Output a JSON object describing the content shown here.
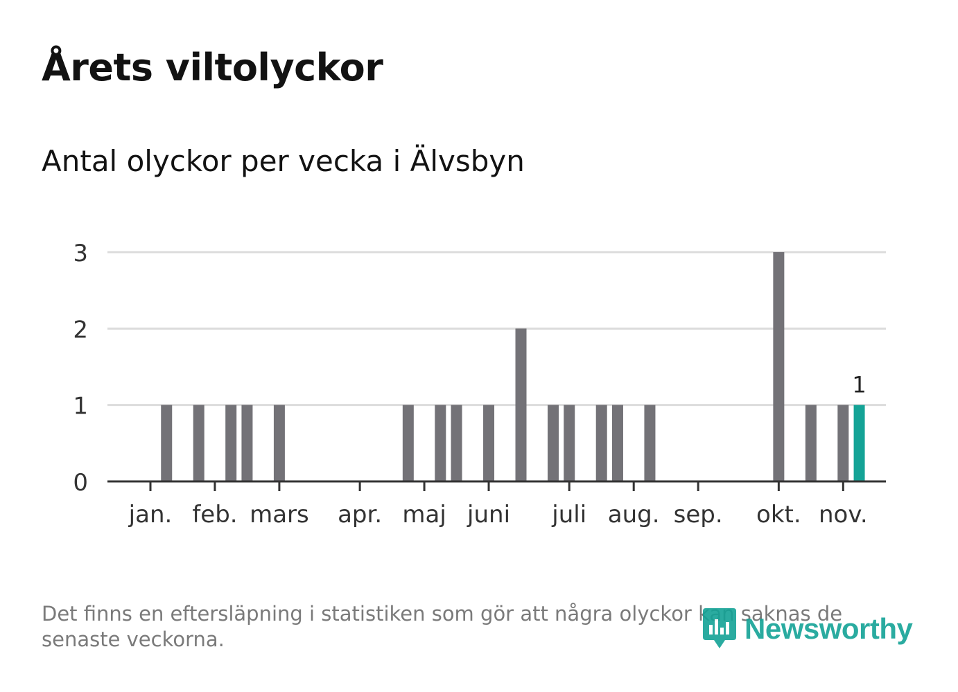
{
  "header": {
    "title": "Årets viltolyckor",
    "subtitle": "Antal olyckor per vecka i Älvsbyn"
  },
  "footer": {
    "note": "Det finns en eftersläpning i statistiken som gör att några olyckor kan saknas de senaste veckorna.",
    "brand": "Newsworthy"
  },
  "colors": {
    "bar": "#737277",
    "highlight": "#14a396",
    "brand": "#14a396",
    "grid": "#dcdcdc",
    "axis": "#333333",
    "text": "#333333"
  },
  "chart_data": {
    "type": "bar",
    "title": "Årets viltolyckor",
    "subtitle": "Antal olyckor per vecka i Älvsbyn",
    "xlabel": "",
    "ylabel": "",
    "ylim": [
      0,
      3
    ],
    "yticks": [
      0,
      1,
      2,
      3
    ],
    "weeks": [
      1,
      2,
      3,
      4,
      5,
      6,
      7,
      8,
      9,
      10,
      11,
      12,
      13,
      14,
      15,
      16,
      17,
      18,
      19,
      20,
      21,
      22,
      23,
      24,
      25,
      26,
      27,
      28,
      29,
      30,
      31,
      32,
      33,
      34,
      35,
      36,
      37,
      38,
      39,
      40,
      41,
      42,
      43,
      44,
      45
    ],
    "values": [
      0,
      1,
      0,
      1,
      0,
      1,
      1,
      0,
      1,
      0,
      0,
      0,
      0,
      0,
      0,
      0,
      1,
      0,
      1,
      1,
      0,
      1,
      0,
      2,
      0,
      1,
      1,
      0,
      1,
      1,
      0,
      1,
      0,
      0,
      0,
      0,
      0,
      0,
      0,
      3,
      0,
      1,
      0,
      1,
      1
    ],
    "month_labels": [
      {
        "label": "jan.",
        "week": 1
      },
      {
        "label": "feb.",
        "week": 5
      },
      {
        "label": "mars",
        "week": 9
      },
      {
        "label": "apr.",
        "week": 14
      },
      {
        "label": "maj",
        "week": 18
      },
      {
        "label": "juni",
        "week": 22
      },
      {
        "label": "juli",
        "week": 27
      },
      {
        "label": "aug.",
        "week": 31
      },
      {
        "label": "sep.",
        "week": 35
      },
      {
        "label": "okt.",
        "week": 40
      },
      {
        "label": "nov.",
        "week": 44
      }
    ],
    "highlight": {
      "week": 45,
      "value": 1,
      "label": "1"
    }
  }
}
